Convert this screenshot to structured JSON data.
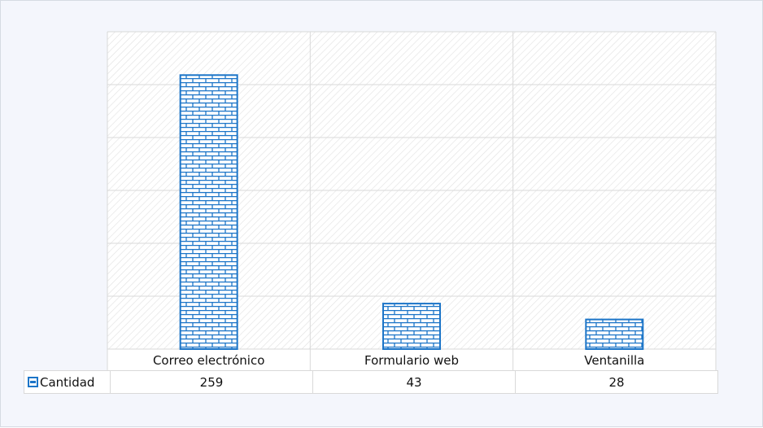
{
  "colors": {
    "bar_stroke": "#1c75c8",
    "bar_fill": "#ffffff",
    "plot_grid": "#d9d9d9",
    "plot_hatch": "#e1e1e1",
    "background": "#f4f6fc"
  },
  "chart_data": {
    "type": "bar",
    "title": "",
    "xlabel": "",
    "ylabel": "",
    "categories": [
      "Correo electrónico",
      "Formulario web",
      "Ventanilla"
    ],
    "series": [
      {
        "name": "Cantidad",
        "values": [
          259,
          43,
          28
        ]
      }
    ],
    "ylim": [
      0,
      300
    ],
    "y_gridlines": [
      50,
      100,
      150,
      200,
      250,
      300
    ],
    "grid": true,
    "legend": "data-table-left",
    "bar_pattern": "brick",
    "show_data_table": true
  }
}
